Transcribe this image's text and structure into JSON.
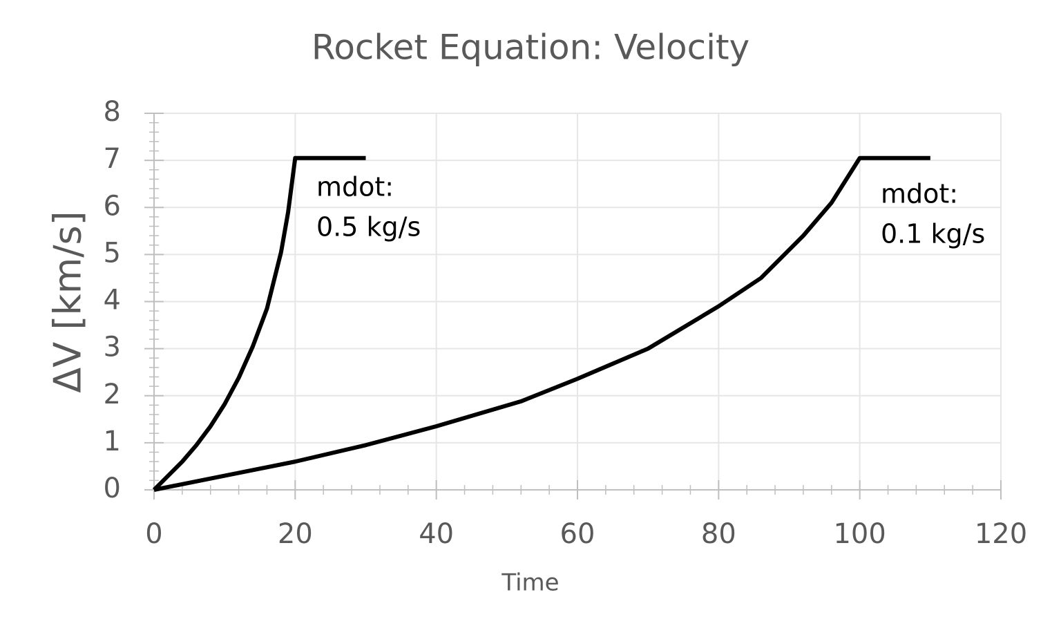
{
  "chart_data": {
    "type": "line",
    "title": "Rocket Equation: Velocity",
    "x_label": "Time",
    "y_label": "ΔV [km/s]",
    "xlim": [
      0,
      120
    ],
    "xticks": [
      0,
      20,
      40,
      60,
      80,
      100,
      120
    ],
    "ylim": [
      0,
      8
    ],
    "yticks": [
      0,
      1,
      2,
      3,
      4,
      5,
      6,
      7,
      8
    ],
    "grid": true,
    "series": [
      {
        "color": "#000000",
        "x": [
          0,
          2,
          4,
          6,
          8,
          10,
          12,
          14,
          16,
          18,
          19,
          20,
          30
        ],
        "values": [
          0,
          0.3,
          0.6,
          0.95,
          1.35,
          1.82,
          2.38,
          3.05,
          3.85,
          5.05,
          5.9,
          7.05,
          7.05
        ]
      },
      {
        "color": "#000000",
        "x": [
          0,
          10,
          20,
          30,
          40,
          52,
          60,
          70,
          80,
          86,
          92,
          96,
          100,
          110
        ],
        "values": [
          0,
          0.3,
          0.6,
          0.95,
          1.35,
          1.88,
          2.36,
          3.0,
          3.9,
          4.5,
          5.4,
          6.1,
          7.05,
          7.05
        ]
      }
    ],
    "annotations": [
      {
        "lines": [
          "mdot:",
          "0.5 kg/s"
        ]
      },
      {
        "lines": [
          "mdot:",
          "0.1 kg/s"
        ]
      }
    ]
  }
}
